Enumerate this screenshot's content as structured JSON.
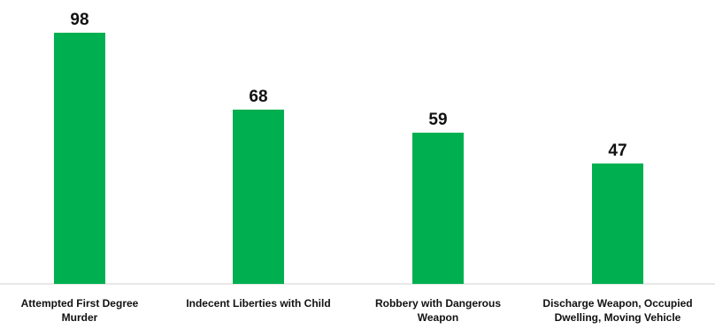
{
  "chart_data": {
    "type": "bar",
    "categories": [
      [
        "Attempted First Degree",
        "Murder"
      ],
      [
        "Indecent Liberties with Child"
      ],
      [
        "Robbery with Dangerous",
        "Weapon"
      ],
      [
        "Discharge Weapon, Occupied",
        "Dwelling, Moving Vehicle"
      ]
    ],
    "values": [
      98,
      68,
      59,
      47
    ],
    "ylim": [
      0,
      100
    ],
    "grid": false,
    "legend": "none",
    "bar_color": "#00B050"
  }
}
